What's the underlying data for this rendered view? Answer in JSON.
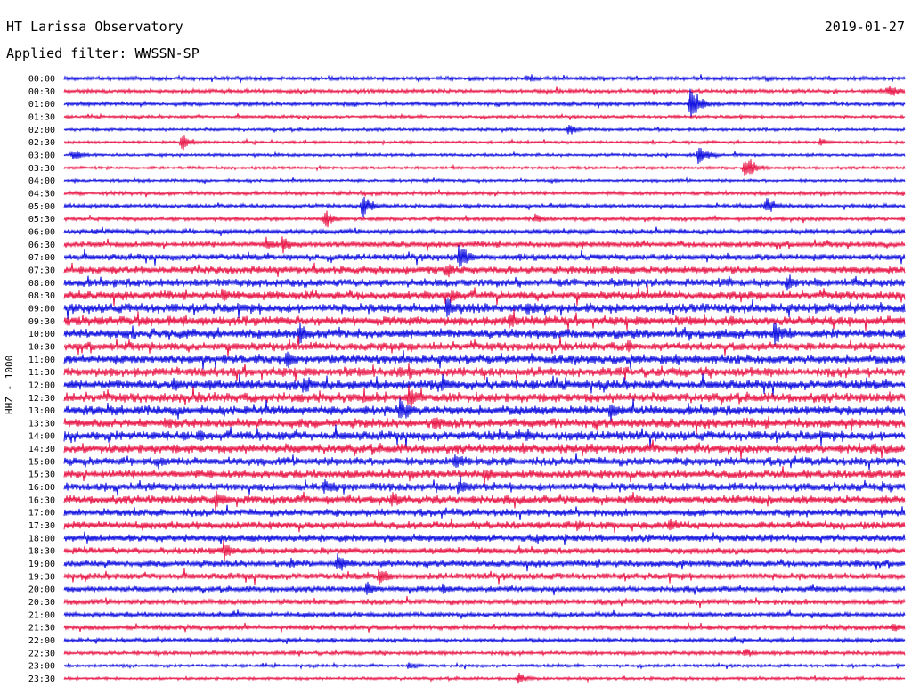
{
  "header": {
    "title": "HT Larissa Observatory",
    "date": "2019-01-27",
    "filter": "Applied filter: WWSSN-SP"
  },
  "colors": {
    "trace_a": "#1010e0",
    "trace_b": "#e81848",
    "text": "#000000",
    "background": "#ffffff"
  },
  "chart_data": {
    "type": "helicorder",
    "ylabel": "HHZ - 1000",
    "row_times": [
      "00:00",
      "00:30",
      "01:00",
      "01:30",
      "02:00",
      "02:30",
      "03:00",
      "03:30",
      "04:00",
      "04:30",
      "05:00",
      "05:30",
      "06:00",
      "06:30",
      "07:00",
      "07:30",
      "08:00",
      "08:30",
      "09:00",
      "09:30",
      "10:00",
      "10:30",
      "11:00",
      "11:30",
      "12:00",
      "12:30",
      "13:00",
      "13:30",
      "14:00",
      "14:30",
      "15:00",
      "15:30",
      "16:00",
      "16:30",
      "17:00",
      "17:30",
      "18:00",
      "18:30",
      "19:00",
      "19:30",
      "20:00",
      "20:30",
      "21:00",
      "21:30",
      "22:00",
      "22:30",
      "23:00",
      "23:30"
    ],
    "row_colors": [
      "blue",
      "red"
    ],
    "noise_level": [
      2,
      2,
      2,
      1.5,
      1.5,
      1.5,
      1.5,
      1.5,
      1.5,
      2,
      2,
      2,
      2.5,
      3,
      3.5,
      4,
      4.5,
      4.5,
      5,
      5,
      5,
      4.5,
      5,
      5,
      5,
      5,
      5,
      5,
      5,
      5,
      4.5,
      4.5,
      4.5,
      4.5,
      4,
      4,
      4,
      3.5,
      3.5,
      3.5,
      3,
      3,
      2.5,
      2.5,
      2,
      2,
      1.5,
      1.5
    ],
    "events": [
      {
        "row": 0,
        "t": 0.55,
        "a": 6
      },
      {
        "row": 1,
        "t": 0.98,
        "a": 10
      },
      {
        "row": 2,
        "t": 0.745,
        "a": 22
      },
      {
        "row": 4,
        "t": 0.6,
        "a": 8
      },
      {
        "row": 5,
        "t": 0.14,
        "a": 10
      },
      {
        "row": 5,
        "t": 0.9,
        "a": 6
      },
      {
        "row": 6,
        "t": 0.755,
        "a": 14
      },
      {
        "row": 6,
        "t": 0.01,
        "a": 8
      },
      {
        "row": 7,
        "t": 0.81,
        "a": 16
      },
      {
        "row": 10,
        "t": 0.355,
        "a": 14
      },
      {
        "row": 10,
        "t": 0.835,
        "a": 12
      },
      {
        "row": 11,
        "t": 0.31,
        "a": 12
      },
      {
        "row": 11,
        "t": 0.56,
        "a": 7
      },
      {
        "row": 13,
        "t": 0.26,
        "a": 12
      },
      {
        "row": 13,
        "t": 0.24,
        "a": 10
      },
      {
        "row": 14,
        "t": 0.47,
        "a": 18
      },
      {
        "row": 15,
        "t": 0.455,
        "a": 11
      },
      {
        "row": 16,
        "t": 0.86,
        "a": 11
      },
      {
        "row": 17,
        "t": 0.46,
        "a": 12
      },
      {
        "row": 17,
        "t": 0.19,
        "a": 9
      },
      {
        "row": 18,
        "t": 0.455,
        "a": 15
      },
      {
        "row": 18,
        "t": 0.55,
        "a": 10
      },
      {
        "row": 19,
        "t": 0.53,
        "a": 14
      },
      {
        "row": 20,
        "t": 0.28,
        "a": 16
      },
      {
        "row": 20,
        "t": 0.845,
        "a": 17
      },
      {
        "row": 21,
        "t": 0.67,
        "a": 10
      },
      {
        "row": 22,
        "t": 0.265,
        "a": 14
      },
      {
        "row": 23,
        "t": 0.41,
        "a": 13
      },
      {
        "row": 24,
        "t": 0.285,
        "a": 12
      },
      {
        "row": 24,
        "t": 0.45,
        "a": 14
      },
      {
        "row": 24,
        "t": 0.13,
        "a": 10
      },
      {
        "row": 25,
        "t": 0.41,
        "a": 16
      },
      {
        "row": 26,
        "t": 0.4,
        "a": 16
      },
      {
        "row": 26,
        "t": 0.65,
        "a": 13
      },
      {
        "row": 27,
        "t": 0.44,
        "a": 14
      },
      {
        "row": 27,
        "t": 0.12,
        "a": 9
      },
      {
        "row": 28,
        "t": 0.16,
        "a": 10
      },
      {
        "row": 28,
        "t": 0.55,
        "a": 10
      },
      {
        "row": 30,
        "t": 0.465,
        "a": 14
      },
      {
        "row": 31,
        "t": 0.5,
        "a": 12
      },
      {
        "row": 32,
        "t": 0.47,
        "a": 14
      },
      {
        "row": 32,
        "t": 0.31,
        "a": 10
      },
      {
        "row": 33,
        "t": 0.18,
        "a": 16
      },
      {
        "row": 33,
        "t": 0.39,
        "a": 13
      },
      {
        "row": 35,
        "t": 0.72,
        "a": 10
      },
      {
        "row": 35,
        "t": 0.61,
        "a": 8
      },
      {
        "row": 37,
        "t": 0.19,
        "a": 14
      },
      {
        "row": 38,
        "t": 0.325,
        "a": 14
      },
      {
        "row": 38,
        "t": 0.27,
        "a": 8
      },
      {
        "row": 39,
        "t": 0.375,
        "a": 14
      },
      {
        "row": 40,
        "t": 0.36,
        "a": 10
      },
      {
        "row": 40,
        "t": 0.45,
        "a": 8
      },
      {
        "row": 42,
        "t": 0.2,
        "a": 6
      },
      {
        "row": 43,
        "t": 0.985,
        "a": 8
      },
      {
        "row": 45,
        "t": 0.81,
        "a": 6
      },
      {
        "row": 46,
        "t": 0.41,
        "a": 6
      },
      {
        "row": 47,
        "t": 0.54,
        "a": 8
      }
    ]
  }
}
